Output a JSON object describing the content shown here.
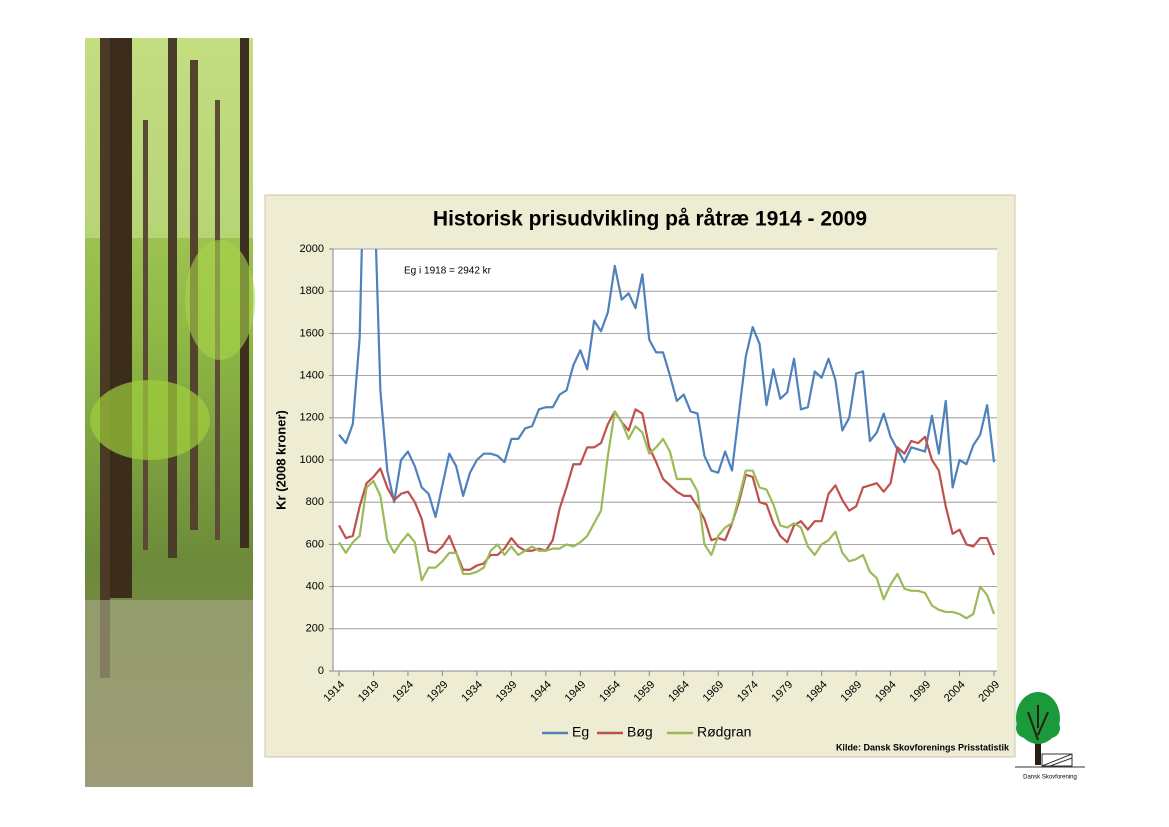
{
  "chart_data": {
    "type": "line",
    "title": "Historisk prisudvikling på råtræ 1914 - 2009",
    "y_label": "Kr (2008 kroner)",
    "annotation": "Eg i 1918 = 2942 kr",
    "source": "Kilde: Dansk Skovforenings Prisstatistik",
    "x": [
      1914,
      1915,
      1916,
      1917,
      1918,
      1919,
      1920,
      1921,
      1922,
      1923,
      1924,
      1925,
      1926,
      1927,
      1928,
      1929,
      1930,
      1931,
      1932,
      1933,
      1934,
      1935,
      1936,
      1937,
      1938,
      1939,
      1940,
      1941,
      1942,
      1943,
      1944,
      1945,
      1946,
      1947,
      1948,
      1949,
      1950,
      1951,
      1952,
      1953,
      1954,
      1955,
      1956,
      1957,
      1958,
      1959,
      1960,
      1961,
      1962,
      1963,
      1964,
      1965,
      1966,
      1967,
      1968,
      1969,
      1970,
      1971,
      1972,
      1973,
      1974,
      1975,
      1976,
      1977,
      1978,
      1979,
      1980,
      1981,
      1982,
      1983,
      1984,
      1985,
      1986,
      1987,
      1988,
      1989,
      1990,
      1991,
      1992,
      1993,
      1994,
      1995,
      1996,
      1997,
      1998,
      1999,
      2000,
      2001,
      2002,
      2003,
      2004,
      2005,
      2006,
      2007,
      2008,
      2009
    ],
    "series": [
      {
        "name": "Eg",
        "color": "#4f81bd",
        "values": [
          1120,
          1080,
          1170,
          1580,
          2942,
          2400,
          1330,
          950,
          800,
          1000,
          1040,
          970,
          870,
          840,
          730,
          880,
          1030,
          970,
          830,
          940,
          1000,
          1030,
          1030,
          1020,
          990,
          1100,
          1100,
          1150,
          1160,
          1240,
          1250,
          1250,
          1310,
          1330,
          1450,
          1520,
          1430,
          1660,
          1610,
          1700,
          1920,
          1760,
          1790,
          1720,
          1880,
          1570,
          1510,
          1510,
          1400,
          1280,
          1310,
          1230,
          1220,
          1020,
          950,
          940,
          1040,
          950,
          1220,
          1490,
          1630,
          1550,
          1260,
          1430,
          1290,
          1320,
          1480,
          1240,
          1250,
          1420,
          1390,
          1480,
          1380,
          1140,
          1200,
          1410,
          1420,
          1090,
          1130,
          1220,
          1110,
          1050,
          990,
          1060,
          1050,
          1040,
          1210,
          1030,
          1280,
          870,
          1000,
          980,
          1070,
          1120,
          1260,
          990
        ]
      },
      {
        "name": "Bøg",
        "color": "#c0504d",
        "values": [
          690,
          630,
          640,
          780,
          890,
          920,
          960,
          870,
          810,
          840,
          850,
          800,
          720,
          570,
          560,
          590,
          640,
          560,
          480,
          480,
          500,
          510,
          550,
          550,
          580,
          630,
          590,
          570,
          570,
          580,
          570,
          620,
          770,
          870,
          980,
          980,
          1060,
          1060,
          1080,
          1170,
          1230,
          1180,
          1140,
          1240,
          1220,
          1060,
          990,
          910,
          880,
          850,
          830,
          830,
          780,
          720,
          620,
          630,
          620,
          700,
          800,
          930,
          920,
          800,
          790,
          700,
          640,
          610,
          690,
          710,
          670,
          710,
          710,
          840,
          880,
          810,
          760,
          780,
          870,
          880,
          890,
          850,
          890,
          1060,
          1030,
          1090,
          1080,
          1110,
          1000,
          950,
          780,
          650,
          670,
          600,
          590,
          630,
          630,
          550
        ]
      },
      {
        "name": "Rødgran",
        "color": "#9bbb59",
        "values": [
          610,
          560,
          610,
          640,
          870,
          900,
          830,
          620,
          560,
          610,
          650,
          610,
          430,
          490,
          490,
          520,
          560,
          560,
          460,
          460,
          470,
          490,
          570,
          600,
          550,
          590,
          550,
          570,
          590,
          570,
          570,
          580,
          580,
          600,
          590,
          610,
          640,
          700,
          760,
          1020,
          1230,
          1180,
          1100,
          1160,
          1130,
          1030,
          1060,
          1100,
          1040,
          910,
          910,
          910,
          850,
          600,
          550,
          640,
          680,
          700,
          820,
          950,
          950,
          870,
          860,
          790,
          690,
          680,
          700,
          680,
          590,
          550,
          600,
          620,
          660,
          560,
          520,
          530,
          550,
          470,
          440,
          340,
          410,
          460,
          390,
          380,
          380,
          370,
          310,
          290,
          280,
          280,
          270,
          250,
          270,
          400,
          360,
          270
        ]
      }
    ],
    "xlim": [
      1914,
      2009
    ],
    "xticks": [
      1914,
      1919,
      1924,
      1929,
      1934,
      1939,
      1944,
      1949,
      1954,
      1959,
      1964,
      1969,
      1974,
      1979,
      1984,
      1989,
      1994,
      1999,
      2004,
      2009
    ],
    "ylim": [
      0,
      2000
    ],
    "yticks": [
      0,
      200,
      400,
      600,
      800,
      1000,
      1200,
      1400,
      1600,
      1800,
      2000
    ],
    "grid": true,
    "legend": "bottom"
  },
  "logo": "Dansk Skovforening"
}
